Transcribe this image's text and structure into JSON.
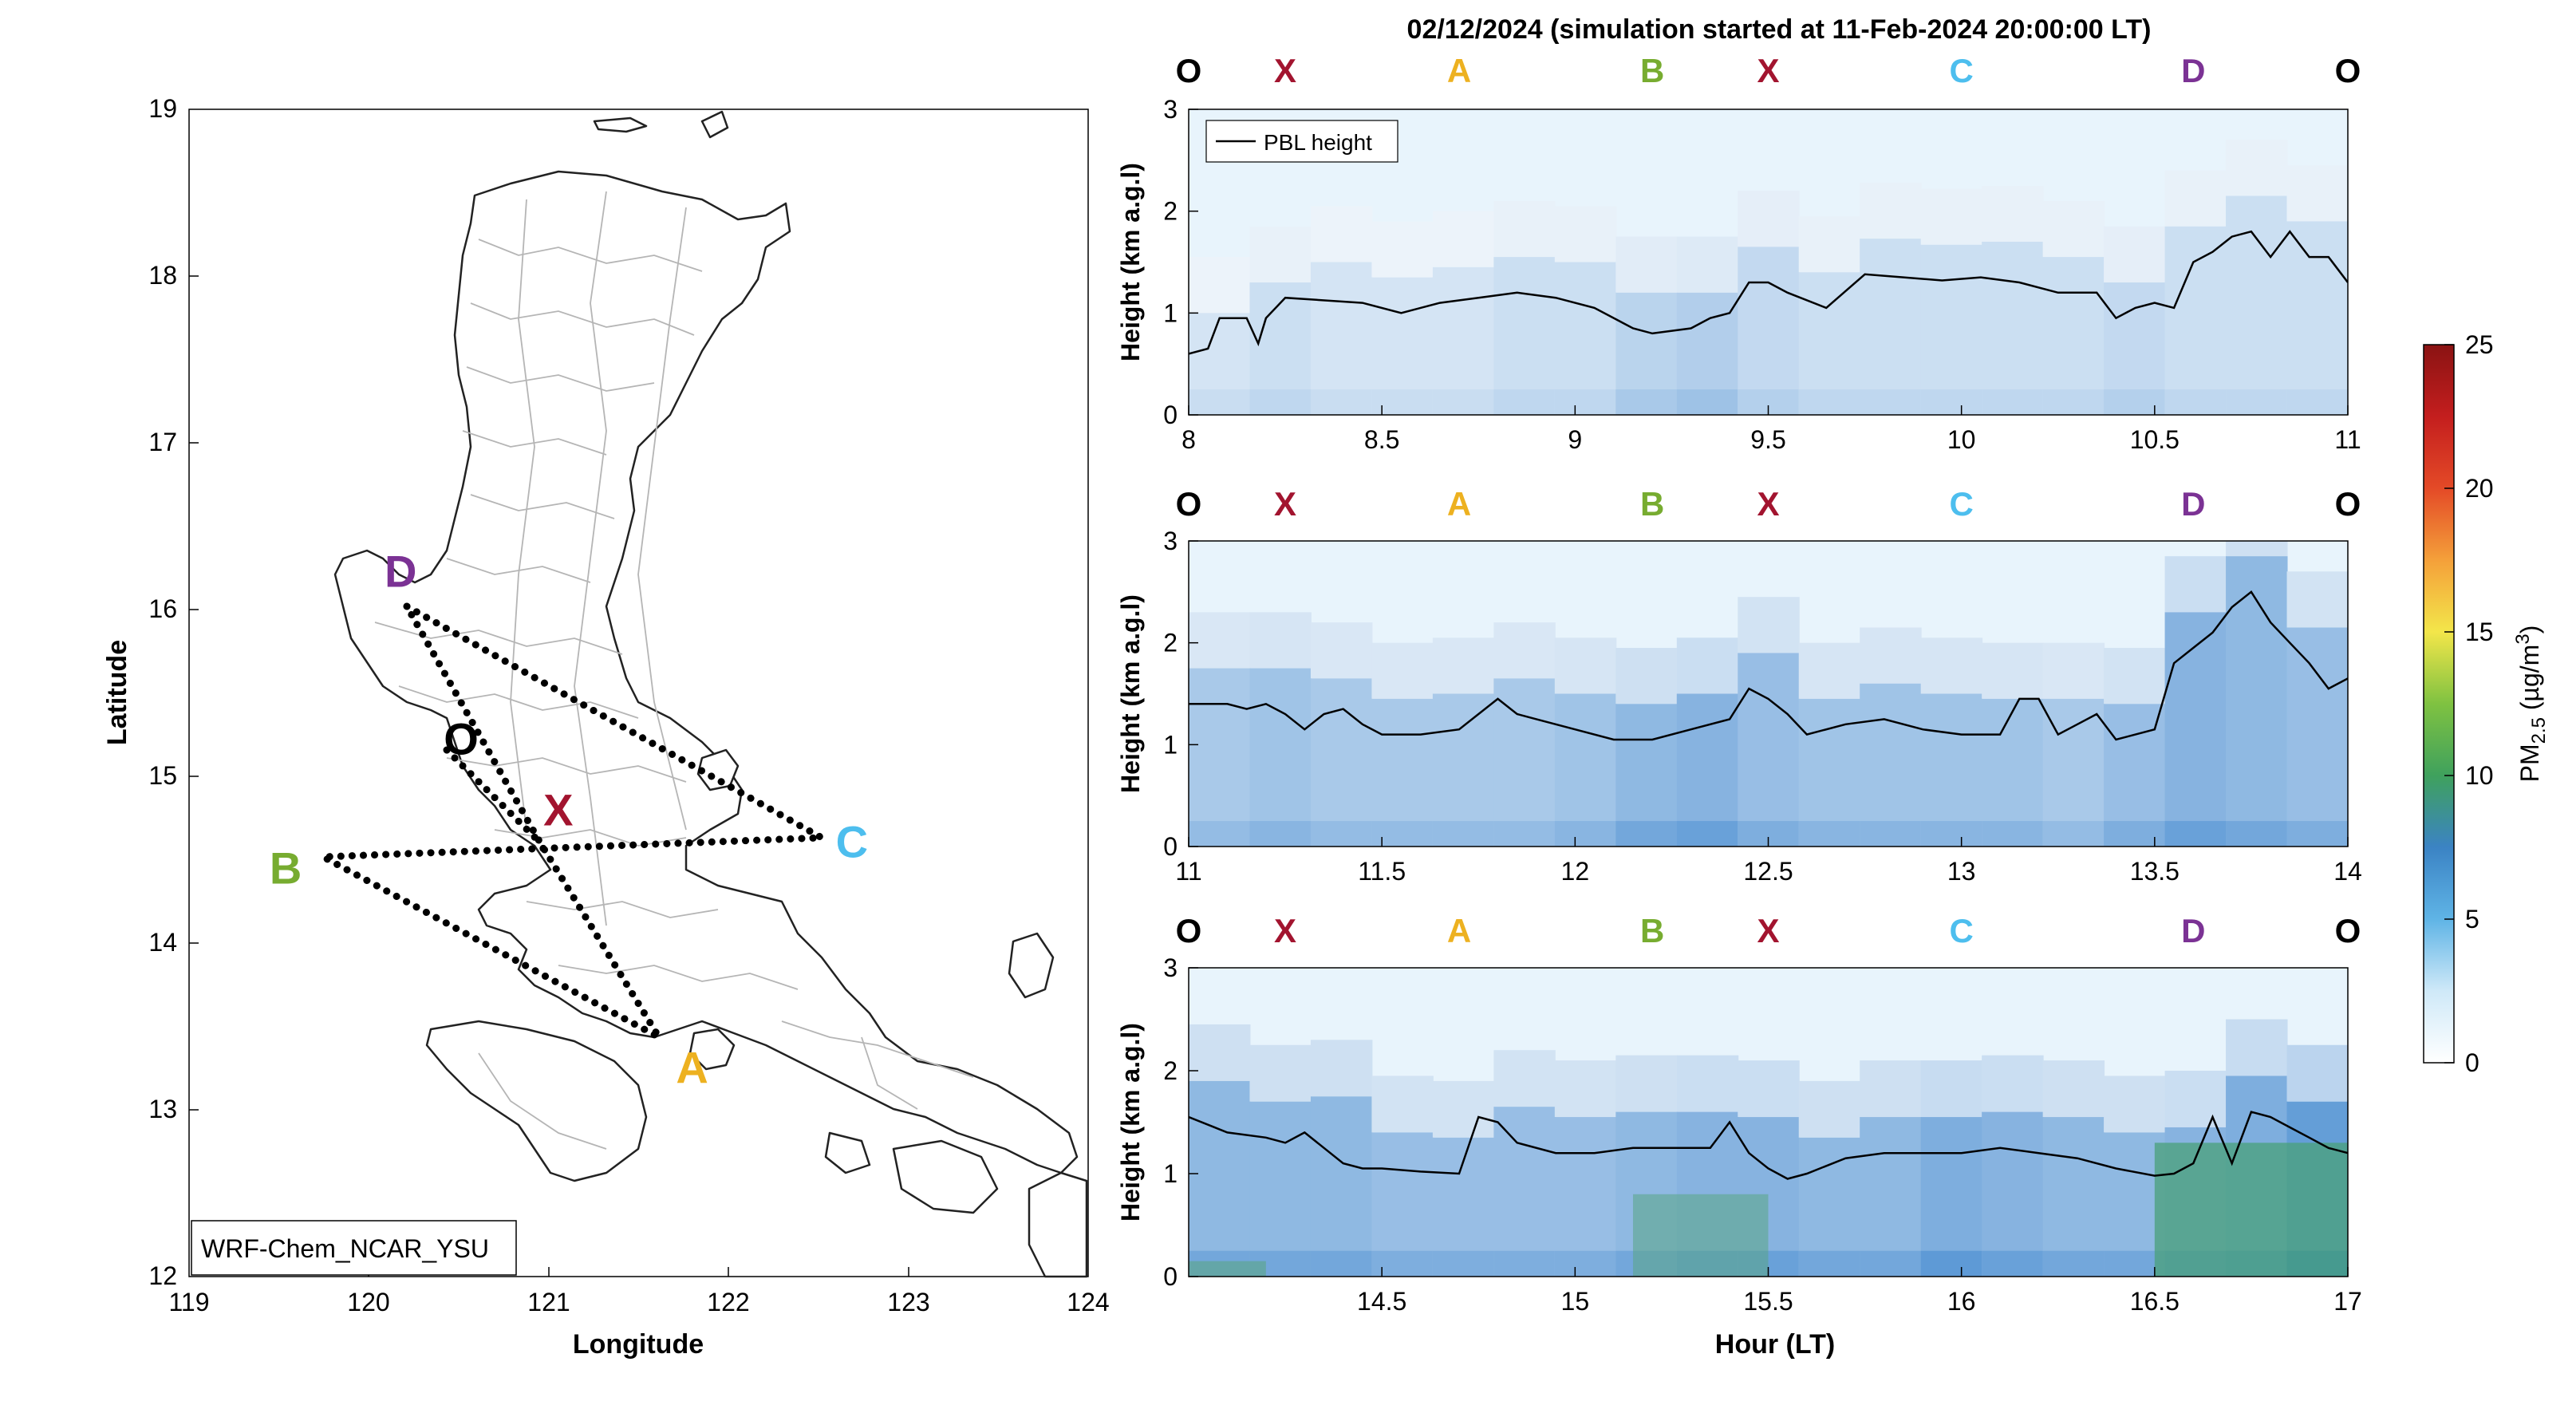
{
  "figure": {
    "title": "02/12/2024 (simulation started at 11-Feb-2024 20:00:00 LT)"
  },
  "map": {
    "xlabel": "Longitude",
    "ylabel": "Latitude",
    "xticks": [
      "119",
      "120",
      "121",
      "122",
      "123",
      "124"
    ],
    "yticks": [
      "12",
      "13",
      "14",
      "15",
      "16",
      "17",
      "18",
      "19"
    ],
    "model_label": "WRF-Chem_NCAR_YSU",
    "points": [
      {
        "label": "D",
        "lon": 120.23,
        "lat": 16.05,
        "color": "#7b3294"
      },
      {
        "label": "O",
        "lon": 120.38,
        "lat": 15.17,
        "color": "#000000"
      },
      {
        "label": "X",
        "lon": 121.0,
        "lat": 14.6,
        "color": "#a2142f"
      },
      {
        "label": "C",
        "lon": 122.5,
        "lat": 14.62,
        "color": "#4dbeee"
      },
      {
        "label": "B",
        "lon": 119.75,
        "lat": 14.5,
        "color": "#77ac30"
      },
      {
        "label": "A",
        "lon": 121.7,
        "lat": 13.4,
        "color": "#edb120"
      }
    ]
  },
  "route_labels": [
    {
      "label": "O",
      "color": "#000000"
    },
    {
      "label": "X",
      "color": "#a2142f"
    },
    {
      "label": "A",
      "color": "#edb120"
    },
    {
      "label": "B",
      "color": "#77ac30"
    },
    {
      "label": "X",
      "color": "#a2142f"
    },
    {
      "label": "C",
      "color": "#4dbeee"
    },
    {
      "label": "D",
      "color": "#7b3294"
    },
    {
      "label": "O",
      "color": "#000000"
    }
  ],
  "colorbar": {
    "label": "PM2.5 (µg/m3)",
    "label_main": "PM",
    "label_sub": "2.5",
    "label_units": " (µg/m",
    "label_sup": "3",
    "label_close": ")",
    "ticks": [
      "0",
      "5",
      "10",
      "15",
      "20",
      "25"
    ],
    "range": [
      0,
      25
    ]
  },
  "chart_data": [
    {
      "type": "heatmap",
      "title": "",
      "xlabel": "",
      "ylabel": "Height (km a.g.l)",
      "xlim": [
        8,
        11
      ],
      "ylim": [
        0,
        3
      ],
      "xticks": [
        "8",
        "8.5",
        "9",
        "9.5",
        "10",
        "10.5",
        "11"
      ],
      "yticks": [
        "0",
        "1",
        "2",
        "3"
      ],
      "legend": "PBL height",
      "pbl_series": {
        "name": "PBL height",
        "x": [
          8.0,
          8.05,
          8.08,
          8.15,
          8.18,
          8.2,
          8.25,
          8.45,
          8.55,
          8.65,
          8.75,
          8.85,
          8.95,
          9.05,
          9.15,
          9.2,
          9.3,
          9.35,
          9.4,
          9.45,
          9.5,
          9.55,
          9.65,
          9.75,
          9.85,
          9.95,
          10.05,
          10.15,
          10.25,
          10.35,
          10.4,
          10.45,
          10.5,
          10.55,
          10.6,
          10.65,
          10.7,
          10.75,
          10.8,
          10.85,
          10.9,
          10.95,
          11.0
        ],
        "y": [
          0.6,
          0.65,
          0.95,
          0.95,
          0.7,
          0.95,
          1.15,
          1.1,
          1.0,
          1.1,
          1.15,
          1.2,
          1.15,
          1.05,
          0.85,
          0.8,
          0.85,
          0.95,
          1.0,
          1.3,
          1.3,
          1.2,
          1.05,
          1.38,
          1.35,
          1.32,
          1.35,
          1.3,
          1.2,
          1.2,
          0.95,
          1.05,
          1.1,
          1.05,
          1.5,
          1.6,
          1.75,
          1.8,
          1.55,
          1.8,
          1.55,
          1.55,
          1.3
        ]
      },
      "pm_intensity": [
        2.5,
        3,
        2.5,
        2.5,
        2.5,
        3,
        3,
        4,
        4.5,
        3.5,
        3,
        3,
        3,
        3,
        3,
        3.5,
        3,
        3,
        3
      ]
    },
    {
      "type": "heatmap",
      "title": "",
      "xlabel": "",
      "ylabel": "Height (km a.g.l)",
      "xlim": [
        11,
        14
      ],
      "ylim": [
        0,
        3
      ],
      "xticks": [
        "11",
        "11.5",
        "12",
        "12.5",
        "13",
        "13.5",
        "14"
      ],
      "yticks": [
        "0",
        "1",
        "2",
        "3"
      ],
      "legend": "",
      "pbl_series": {
        "name": "PBL height",
        "x": [
          11.0,
          11.1,
          11.15,
          11.2,
          11.25,
          11.3,
          11.35,
          11.4,
          11.45,
          11.5,
          11.6,
          11.7,
          11.75,
          11.8,
          11.85,
          11.9,
          12.0,
          12.1,
          12.2,
          12.3,
          12.4,
          12.45,
          12.5,
          12.55,
          12.6,
          12.7,
          12.8,
          12.9,
          13.0,
          13.1,
          13.15,
          13.2,
          13.25,
          13.3,
          13.35,
          13.4,
          13.5,
          13.55,
          13.6,
          13.65,
          13.7,
          13.75,
          13.8,
          13.85,
          13.9,
          13.95,
          14.0
        ],
        "y": [
          1.4,
          1.4,
          1.35,
          1.4,
          1.3,
          1.15,
          1.3,
          1.35,
          1.2,
          1.1,
          1.1,
          1.15,
          1.3,
          1.45,
          1.3,
          1.25,
          1.15,
          1.05,
          1.05,
          1.15,
          1.25,
          1.55,
          1.45,
          1.3,
          1.1,
          1.2,
          1.25,
          1.15,
          1.1,
          1.1,
          1.45,
          1.45,
          1.1,
          1.2,
          1.3,
          1.05,
          1.15,
          1.8,
          1.95,
          2.1,
          2.35,
          2.5,
          2.2,
          2.0,
          1.8,
          1.55,
          1.65
        ]
      },
      "pm_intensity": [
        5,
        5.5,
        5,
        5,
        5,
        5,
        5.5,
        6.5,
        7,
        6,
        5.5,
        5.5,
        5.5,
        5.5,
        5,
        6,
        7,
        6.5,
        6
      ]
    },
    {
      "type": "heatmap",
      "title": "",
      "xlabel": "Hour (LT)",
      "ylabel": "Height (km a.g.l)",
      "xlim": [
        14,
        17
      ],
      "ylim": [
        0,
        3
      ],
      "xticks": [
        "14.5",
        "15",
        "15.5",
        "16",
        "16.5",
        "17"
      ],
      "yticks": [
        "0",
        "1",
        "2",
        "3"
      ],
      "legend": "",
      "pbl_series": {
        "name": "PBL height",
        "x": [
          14.0,
          14.1,
          14.2,
          14.25,
          14.3,
          14.4,
          14.45,
          14.5,
          14.6,
          14.7,
          14.75,
          14.8,
          14.85,
          14.95,
          15.05,
          15.15,
          15.25,
          15.35,
          15.4,
          15.45,
          15.5,
          15.55,
          15.6,
          15.7,
          15.8,
          15.9,
          16.0,
          16.1,
          16.2,
          16.3,
          16.4,
          16.5,
          16.55,
          16.6,
          16.65,
          16.7,
          16.75,
          16.8,
          16.85,
          16.9,
          16.95,
          17.0
        ],
        "y": [
          1.55,
          1.4,
          1.35,
          1.3,
          1.4,
          1.1,
          1.05,
          1.05,
          1.02,
          1.0,
          1.55,
          1.5,
          1.3,
          1.2,
          1.2,
          1.25,
          1.25,
          1.25,
          1.5,
          1.2,
          1.05,
          0.95,
          1.0,
          1.15,
          1.2,
          1.2,
          1.2,
          1.25,
          1.2,
          1.15,
          1.05,
          0.98,
          1.0,
          1.1,
          1.55,
          1.1,
          1.6,
          1.55,
          1.45,
          1.35,
          1.25,
          1.2
        ]
      },
      "pm_intensity": [
        6.5,
        6.5,
        6.5,
        6,
        6,
        6,
        6,
        6.5,
        7,
        7,
        6.5,
        6.5,
        7.5,
        7,
        6.5,
        6.5,
        7,
        7.5,
        9
      ]
    }
  ]
}
